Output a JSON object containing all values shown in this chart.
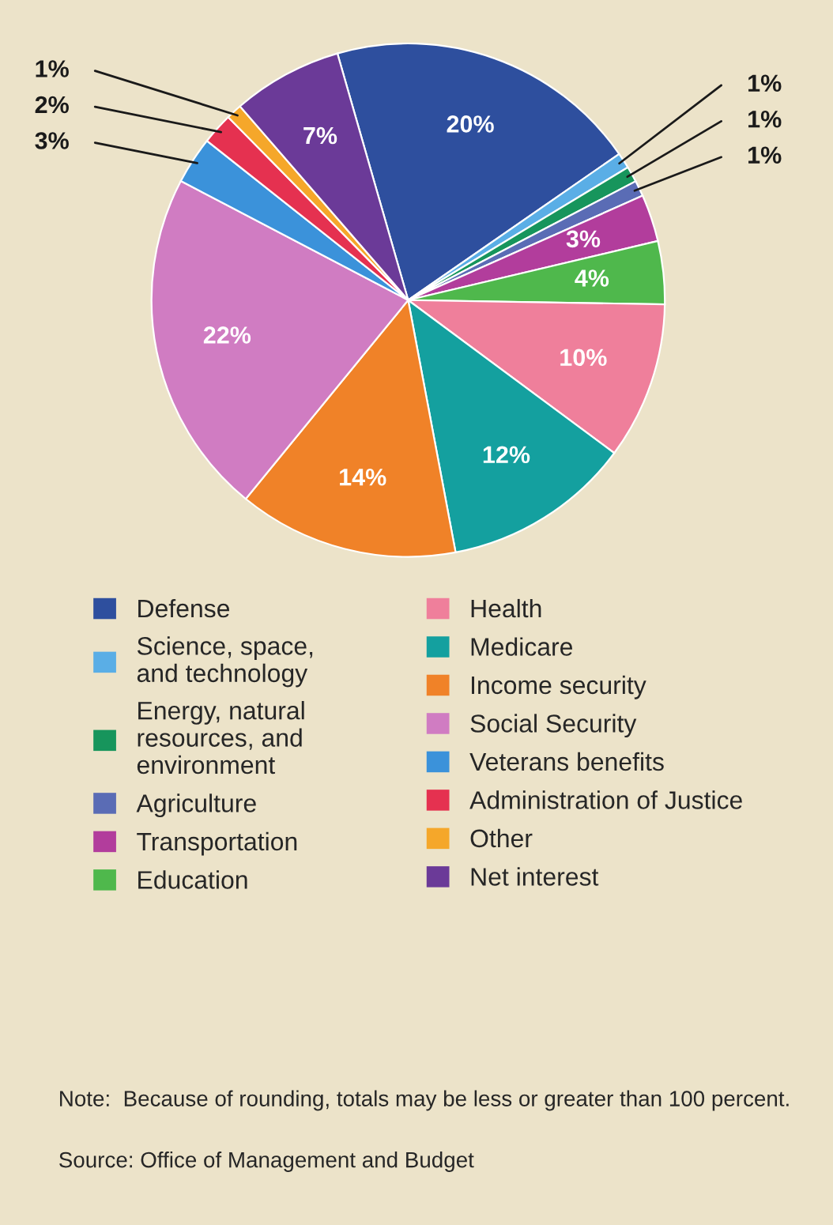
{
  "chart_data": {
    "type": "pie",
    "legend": "bottom",
    "categories": [
      "Defense",
      "Science, space, and technology",
      "Energy, natural resources, and environment",
      "Agriculture",
      "Transportation",
      "Education",
      "Health",
      "Medicare",
      "Income security",
      "Social Security",
      "Veterans benefits",
      "Administration of Justice",
      "Other",
      "Net interest"
    ],
    "values": [
      20,
      1,
      1,
      1,
      3,
      4,
      10,
      12,
      14,
      22,
      3,
      2,
      1,
      7
    ],
    "colors": [
      "#2e4f9e",
      "#5aaee6",
      "#17955c",
      "#5a6cb5",
      "#b23d9c",
      "#4fb84c",
      "#ef7f9b",
      "#14a09f",
      "#f08228",
      "#d07cc2",
      "#3b92da",
      "#e53150",
      "#f5a72a",
      "#6b3a98"
    ],
    "value_labels": [
      "20%",
      "1%",
      "1%",
      "1%",
      "3%",
      "4%",
      "10%",
      "12%",
      "14%",
      "22%",
      "3%",
      "2%",
      "1%",
      "7%"
    ],
    "annotations": [
      "Note:  Because of rounding, totals may be less or greater than 100 percent.",
      "Source: Office of Management and Budget"
    ]
  }
}
